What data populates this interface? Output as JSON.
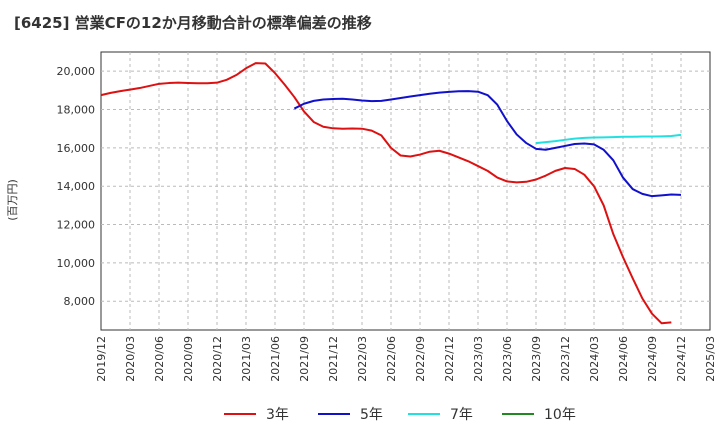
{
  "title": "[6425]  営業CFの12か月移動合計の標準偏差の推移",
  "chart_data": {
    "type": "line",
    "ylabel": "(百万円)",
    "ylim": [
      6500,
      21000
    ],
    "yticks": [
      8000,
      10000,
      12000,
      14000,
      16000,
      18000,
      20000
    ],
    "ytick_labels": [
      "8,000",
      "10,000",
      "12,000",
      "14,000",
      "16,000",
      "18,000",
      "20,000"
    ],
    "xticks": [
      "2019/12",
      "2020/03",
      "2020/06",
      "2020/09",
      "2020/12",
      "2021/03",
      "2021/06",
      "2021/09",
      "2021/12",
      "2022/03",
      "2022/06",
      "2022/09",
      "2022/12",
      "2023/03",
      "2023/06",
      "2023/09",
      "2023/12",
      "2024/03",
      "2024/06",
      "2024/09",
      "2024/12",
      "2025/03"
    ],
    "grid": true,
    "legend_position": "bottom",
    "series": [
      {
        "name": "3年",
        "color": "#dd1111",
        "start": "2019/12",
        "values": [
          18750,
          18870,
          18960,
          19040,
          19120,
          19230,
          19340,
          19380,
          19400,
          19380,
          19370,
          19370,
          19400,
          19550,
          19800,
          20150,
          20420,
          20400,
          19900,
          19300,
          18650,
          17900,
          17350,
          17100,
          17020,
          17000,
          17010,
          17000,
          16900,
          16650,
          16000,
          15600,
          15550,
          15650,
          15800,
          15850,
          15700,
          15500,
          15300,
          15050,
          14800,
          14450,
          14250,
          14200,
          14230,
          14350,
          14550,
          14800,
          14950,
          14900,
          14600,
          14000,
          13000,
          11500,
          10300,
          9200,
          8150,
          7350,
          6850,
          6900
        ]
      },
      {
        "name": "5年",
        "color": "#1111cc",
        "start": "2021/08",
        "values": [
          18050,
          18300,
          18450,
          18520,
          18550,
          18560,
          18520,
          18470,
          18440,
          18450,
          18520,
          18600,
          18680,
          18750,
          18820,
          18880,
          18920,
          18950,
          18960,
          18930,
          18750,
          18250,
          17400,
          16700,
          16250,
          15950,
          15900,
          16000,
          16100,
          16200,
          16230,
          16180,
          15900,
          15350,
          14450,
          13850,
          13600,
          13480,
          13520,
          13570,
          13550
        ]
      },
      {
        "name": "7年",
        "color": "#22e0e0",
        "start": "2023/09",
        "values": [
          16250,
          16300,
          16350,
          16420,
          16480,
          16520,
          16540,
          16550,
          16560,
          16580,
          16580,
          16590,
          16590,
          16600,
          16620,
          16680
        ]
      },
      {
        "name": "10年",
        "color": "#228822",
        "start": "",
        "values": []
      }
    ]
  }
}
